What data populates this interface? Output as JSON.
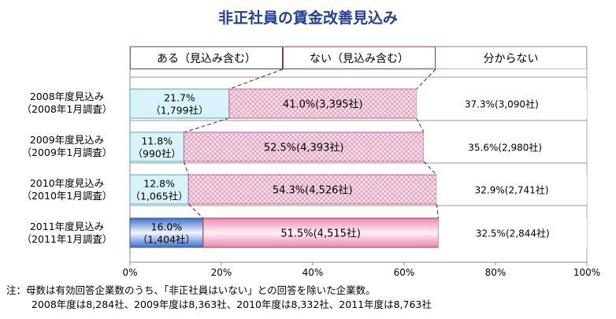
{
  "title": "非正社員の賃金改善見込み",
  "legend": {
    "yes": "ある（見込み含む）",
    "no": "ない（見込み含む）",
    "dont_know": "分からない"
  },
  "rows": [
    {
      "label1": "2008年度見込み",
      "label2": "（2008年1月調査）",
      "yes_l1": "21.7%",
      "yes_l2": "（1,799社）",
      "no_label": "41.0%(3,395社)",
      "dk_label": "37.3%(3,090社)"
    },
    {
      "label1": "2009年度見込み",
      "label2": "（2009年1月調査）",
      "yes_l1": "11.8%",
      "yes_l2": "（990社）",
      "no_label": "52.5%(4,393社)",
      "dk_label": "35.6%(2,980社)"
    },
    {
      "label1": "2010年度見込み",
      "label2": "（2010年1月調査）",
      "yes_l1": "12.8%",
      "yes_l2": "（1,065社）",
      "no_label": "54.3%(4,526社)",
      "dk_label": "32.9%(2,741社)"
    },
    {
      "label1": "2011年度見込み",
      "label2": "（2011年1月調査）",
      "yes_l1": "16.0%",
      "yes_l2": "（1,404社）",
      "no_label": "51.5%(4,515社)",
      "dk_label": "32.5%(2,844社)"
    }
  ],
  "x_ticks": [
    "0%",
    "20%",
    "40%",
    "60%",
    "80%",
    "100%"
  ],
  "note1": "注：母数は有効回答企業数のうち、「非正社員はいない」との回答を除いた企業数。",
  "note2": "2008年度は8,284社、2009年度は8,363社、2010年度は8,332社、2011年度は8,763社",
  "colors": {
    "yes_fill": "#d8f4fa",
    "yes_fill_2011": "#5b86d6",
    "no_fill": "#f4d8e6",
    "no_fill_2011": "#f7c9dc",
    "dk_fill": "#ffffff"
  },
  "chart_data": {
    "type": "bar",
    "orientation": "horizontal",
    "stacked": true,
    "categories": [
      "2008年度見込み（2008年1月調査）",
      "2009年度見込み（2009年1月調査）",
      "2010年度見込み（2010年1月調査）",
      "2011年度見込み（2011年1月調査）"
    ],
    "series": [
      {
        "name": "ある（見込み含む）",
        "values": [
          21.7,
          11.8,
          12.8,
          16.0
        ],
        "counts": [
          1799,
          990,
          1065,
          1404
        ]
      },
      {
        "name": "ない（見込み含む）",
        "values": [
          41.0,
          52.5,
          54.3,
          51.5
        ],
        "counts": [
          3395,
          4393,
          4526,
          4515
        ]
      },
      {
        "name": "分からない",
        "values": [
          37.3,
          35.6,
          32.9,
          32.5
        ],
        "counts": [
          3090,
          2980,
          2741,
          2844
        ]
      }
    ],
    "xlim": [
      0,
      100
    ],
    "x_tick_labels": [
      "0%",
      "20%",
      "40%",
      "60%",
      "80%",
      "100%"
    ],
    "series_lines": true,
    "legend_placement": "top"
  }
}
